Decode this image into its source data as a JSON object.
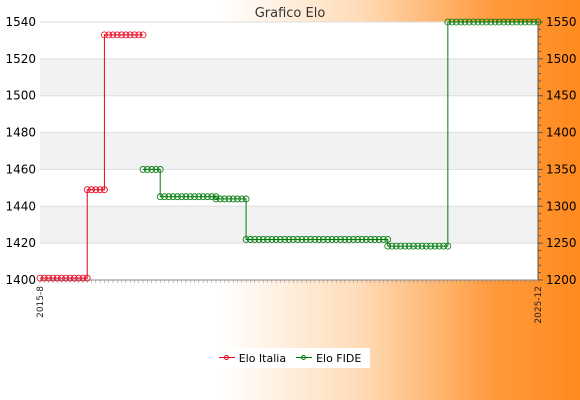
{
  "chart_data": {
    "type": "line",
    "title": "Grafico Elo",
    "y_left": {
      "min": 1400,
      "max": 1540,
      "ticks": [
        1400,
        1420,
        1440,
        1460,
        1480,
        1500,
        1520,
        1540
      ]
    },
    "y_right": {
      "min": 1200,
      "max": 1550,
      "ticks": [
        1200,
        1250,
        1300,
        1350,
        1400,
        1450,
        1500,
        1550
      ]
    },
    "x_count": 117,
    "x_first_label": "2015-8",
    "x_last_label": "2025-12",
    "grid": "horizontal",
    "legend_position": "bottom",
    "series": [
      {
        "name": "Elo Italia",
        "axis": "left",
        "color": "#e8001c",
        "segments": [
          {
            "from": 0,
            "to": 11,
            "value": 1401
          },
          {
            "from": 11,
            "to": 15,
            "value": 1449
          },
          {
            "from": 15,
            "to": 24,
            "value": 1533
          }
        ]
      },
      {
        "name": "Elo FIDE",
        "axis": "right",
        "color": "#007a0a",
        "segments": [
          {
            "from": 24,
            "to": 28,
            "value": 1350
          },
          {
            "from": 28,
            "to": 41,
            "value": 1313
          },
          {
            "from": 41,
            "to": 48,
            "value": 1310
          },
          {
            "from": 48,
            "to": 81,
            "value": 1255
          },
          {
            "from": 81,
            "to": 95,
            "value": 1246
          },
          {
            "from": 95,
            "to": 116,
            "value": 1550
          }
        ]
      }
    ]
  },
  "legend": {
    "italia": "Elo Italia",
    "fide": "Elo FIDE"
  },
  "colors": {
    "italia": "#e8001c",
    "fide": "#007a0a",
    "plot_bg": "#ffffff",
    "band": "#f2f2f2"
  }
}
